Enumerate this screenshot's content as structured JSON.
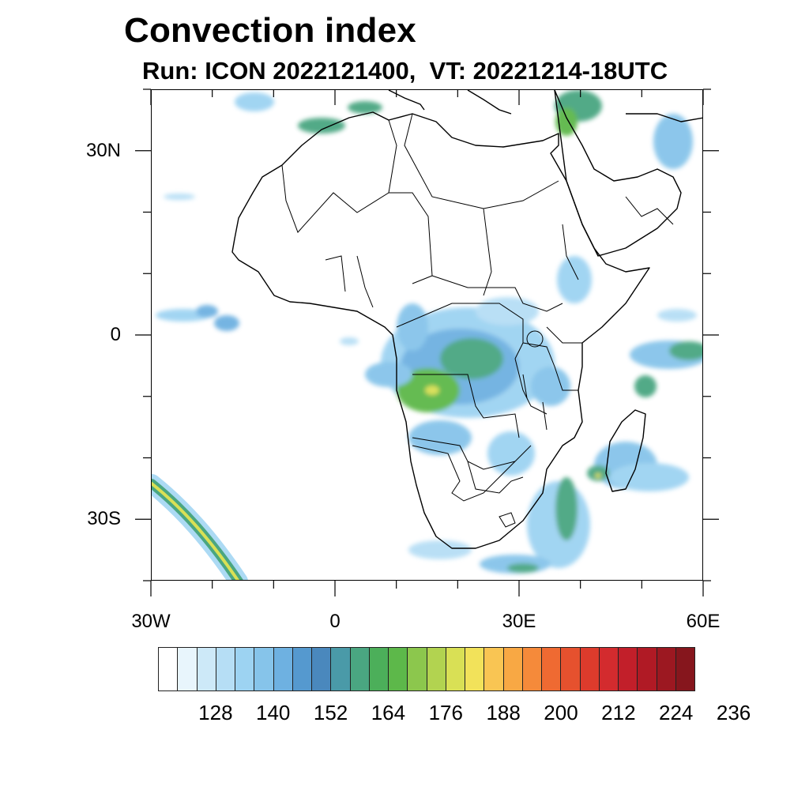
{
  "title": "Convection index",
  "subtitle": "Run: ICON 2022121400,  VT: 20221214-18UTC",
  "map": {
    "lon_range": [
      -30,
      60
    ],
    "lat_range": [
      -40,
      40
    ],
    "lon_ticks": [
      {
        "value": -30,
        "label": "30W"
      },
      {
        "value": 0,
        "label": "0"
      },
      {
        "value": 30,
        "label": "30E"
      },
      {
        "value": 60,
        "label": "60E"
      }
    ],
    "lat_ticks": [
      {
        "value": 30,
        "label": "30N"
      },
      {
        "value": 0,
        "label": "0"
      },
      {
        "value": -30,
        "label": "30S"
      }
    ]
  },
  "colorbar": {
    "colors": [
      "#ffffff",
      "#e8f5fc",
      "#cde9f8",
      "#b6def5",
      "#9dd3f2",
      "#86c4ea",
      "#6eb1e1",
      "#5599cf",
      "#4a88bd",
      "#4a9aa8",
      "#4aa681",
      "#4caf5a",
      "#5db84a",
      "#8cc74d",
      "#b2d350",
      "#d9e055",
      "#f2e25a",
      "#f9c553",
      "#f8a844",
      "#f58a3a",
      "#ef6a32",
      "#e6512e",
      "#dd3b2c",
      "#d32b2e",
      "#c21f2a",
      "#b01a25",
      "#9c1821",
      "#86161d"
    ],
    "labels": [
      "128",
      "140",
      "152",
      "164",
      "176",
      "188",
      "200",
      "212",
      "224",
      "236"
    ]
  }
}
